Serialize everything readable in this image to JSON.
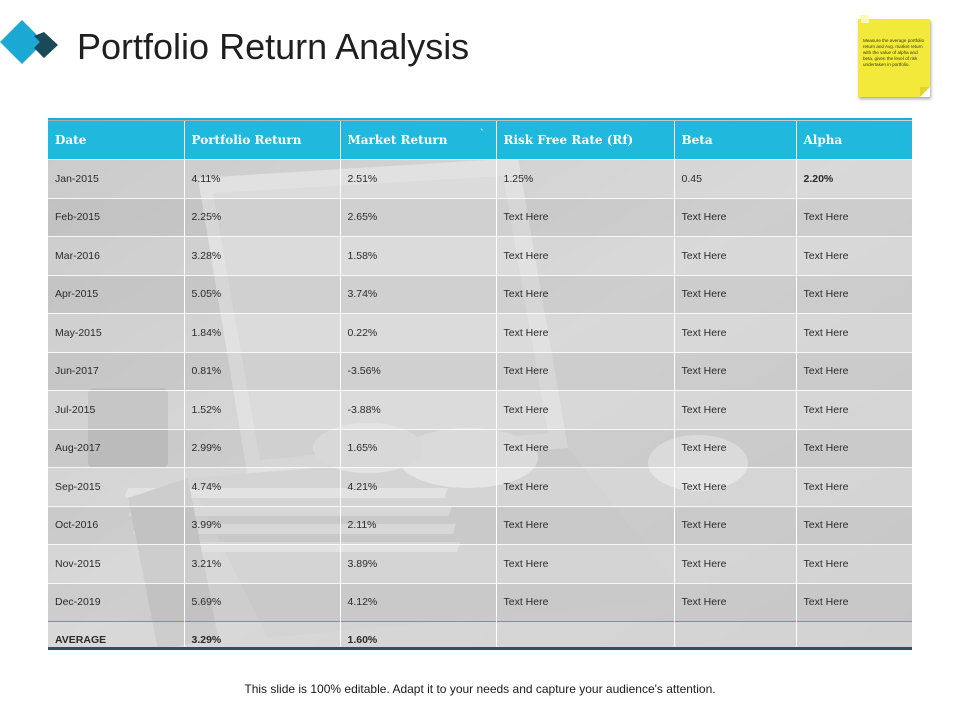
{
  "title": "Portfolio Return Analysis",
  "note": {
    "text": "Measure the average portfolio return and Avg. market return with the value of alpha and beta, given the level of risk undertaken in portfolio."
  },
  "table": {
    "headers": [
      "Date",
      "Portfolio Return",
      "Market Return",
      "Risk Free Rate (Rf)",
      "Beta",
      "Alpha"
    ],
    "header_mark": "`",
    "rows": [
      [
        "Jan-2015",
        "4.11%",
        "2.51%",
        "1.25%",
        "0.45",
        "2.20%"
      ],
      [
        "Feb-2015",
        "2.25%",
        "2.65%",
        "Text Here",
        "Text Here",
        "Text Here"
      ],
      [
        "Mar-2016",
        "3.28%",
        "1.58%",
        "Text Here",
        "Text Here",
        "Text Here"
      ],
      [
        "Apr-2015",
        "5.05%",
        "3.74%",
        "Text Here",
        "Text Here",
        "Text Here"
      ],
      [
        "May-2015",
        "1.84%",
        "0.22%",
        "Text Here",
        "Text Here",
        "Text Here"
      ],
      [
        "Jun-2017",
        "0.81%",
        "-3.56%",
        "Text Here",
        "Text Here",
        "Text Here"
      ],
      [
        "Jul-2015",
        "1.52%",
        "-3.88%",
        "Text Here",
        "Text Here",
        "Text Here"
      ],
      [
        "Aug-2017",
        "2.99%",
        "1.65%",
        "Text Here",
        "Text Here",
        "Text Here"
      ],
      [
        "Sep-2015",
        "4.74%",
        "4.21%",
        "Text Here",
        "Text Here",
        "Text Here"
      ],
      [
        "Oct-2016",
        "3.99%",
        "2.11%",
        "Text Here",
        "Text Here",
        "Text Here"
      ],
      [
        "Nov-2015",
        "3.21%",
        "3.89%",
        "Text Here",
        "Text Here",
        "Text Here"
      ],
      [
        "Dec-2019",
        "5.69%",
        "4.12%",
        "Text Here",
        "Text Here",
        "Text Here"
      ]
    ],
    "average": [
      "AVERAGE",
      "3.29%",
      "1.60%",
      "",
      "",
      ""
    ]
  },
  "footer": "This slide is 100% editable. Adapt it to your needs and capture your audience's attention.",
  "colors": {
    "header": "#20b8dc",
    "accent": "#1aaed2",
    "logo_light": "#1ba9d4",
    "logo_dark": "#1a4a5a",
    "note": "#f3e93a"
  }
}
